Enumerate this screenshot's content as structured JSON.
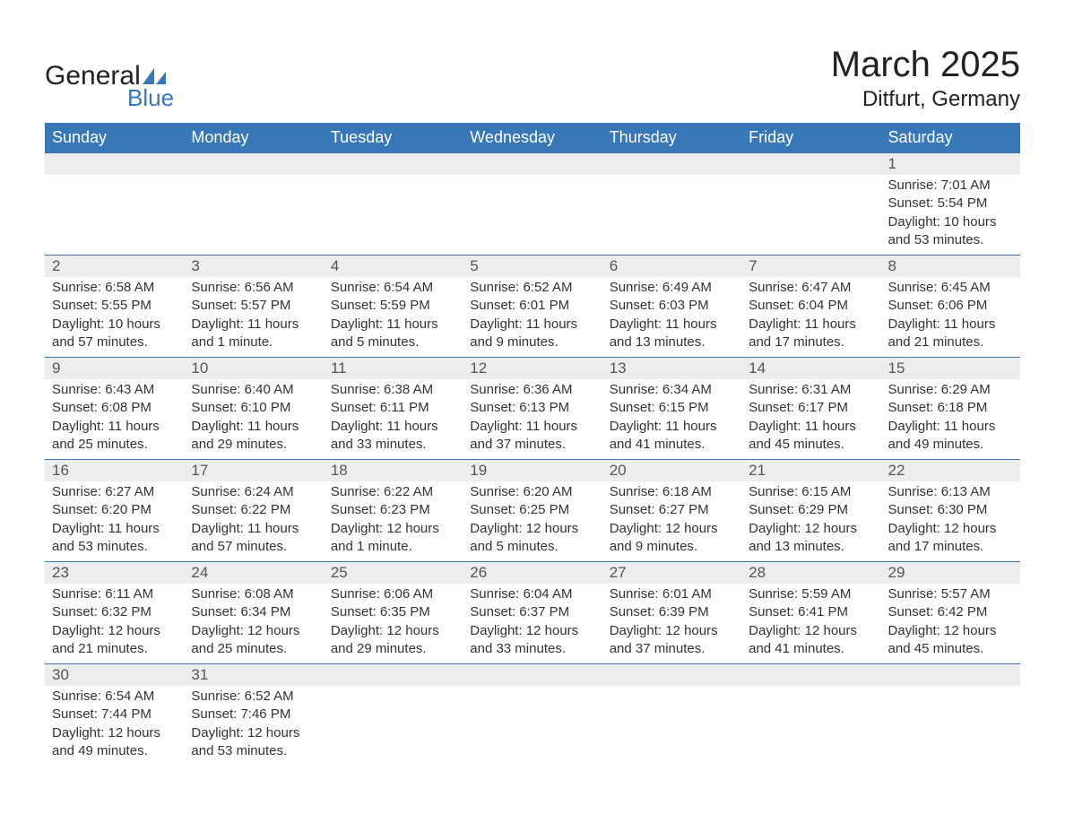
{
  "logo": {
    "text_general": "General",
    "text_blue": "Blue",
    "icon_color": "#3878b8"
  },
  "title": "March 2025",
  "location": "Ditfurt, Germany",
  "colors": {
    "header_bg": "#3878b8",
    "header_text": "#ffffff",
    "daynum_bg": "#ededed",
    "daynum_text": "#555555",
    "body_text": "#333333",
    "row_border": "#3878b8"
  },
  "day_headers": [
    "Sunday",
    "Monday",
    "Tuesday",
    "Wednesday",
    "Thursday",
    "Friday",
    "Saturday"
  ],
  "weeks": [
    [
      null,
      null,
      null,
      null,
      null,
      null,
      {
        "n": "1",
        "sr": "Sunrise: 7:01 AM",
        "ss": "Sunset: 5:54 PM",
        "d1": "Daylight: 10 hours",
        "d2": "and 53 minutes."
      }
    ],
    [
      {
        "n": "2",
        "sr": "Sunrise: 6:58 AM",
        "ss": "Sunset: 5:55 PM",
        "d1": "Daylight: 10 hours",
        "d2": "and 57 minutes."
      },
      {
        "n": "3",
        "sr": "Sunrise: 6:56 AM",
        "ss": "Sunset: 5:57 PM",
        "d1": "Daylight: 11 hours",
        "d2": "and 1 minute."
      },
      {
        "n": "4",
        "sr": "Sunrise: 6:54 AM",
        "ss": "Sunset: 5:59 PM",
        "d1": "Daylight: 11 hours",
        "d2": "and 5 minutes."
      },
      {
        "n": "5",
        "sr": "Sunrise: 6:52 AM",
        "ss": "Sunset: 6:01 PM",
        "d1": "Daylight: 11 hours",
        "d2": "and 9 minutes."
      },
      {
        "n": "6",
        "sr": "Sunrise: 6:49 AM",
        "ss": "Sunset: 6:03 PM",
        "d1": "Daylight: 11 hours",
        "d2": "and 13 minutes."
      },
      {
        "n": "7",
        "sr": "Sunrise: 6:47 AM",
        "ss": "Sunset: 6:04 PM",
        "d1": "Daylight: 11 hours",
        "d2": "and 17 minutes."
      },
      {
        "n": "8",
        "sr": "Sunrise: 6:45 AM",
        "ss": "Sunset: 6:06 PM",
        "d1": "Daylight: 11 hours",
        "d2": "and 21 minutes."
      }
    ],
    [
      {
        "n": "9",
        "sr": "Sunrise: 6:43 AM",
        "ss": "Sunset: 6:08 PM",
        "d1": "Daylight: 11 hours",
        "d2": "and 25 minutes."
      },
      {
        "n": "10",
        "sr": "Sunrise: 6:40 AM",
        "ss": "Sunset: 6:10 PM",
        "d1": "Daylight: 11 hours",
        "d2": "and 29 minutes."
      },
      {
        "n": "11",
        "sr": "Sunrise: 6:38 AM",
        "ss": "Sunset: 6:11 PM",
        "d1": "Daylight: 11 hours",
        "d2": "and 33 minutes."
      },
      {
        "n": "12",
        "sr": "Sunrise: 6:36 AM",
        "ss": "Sunset: 6:13 PM",
        "d1": "Daylight: 11 hours",
        "d2": "and 37 minutes."
      },
      {
        "n": "13",
        "sr": "Sunrise: 6:34 AM",
        "ss": "Sunset: 6:15 PM",
        "d1": "Daylight: 11 hours",
        "d2": "and 41 minutes."
      },
      {
        "n": "14",
        "sr": "Sunrise: 6:31 AM",
        "ss": "Sunset: 6:17 PM",
        "d1": "Daylight: 11 hours",
        "d2": "and 45 minutes."
      },
      {
        "n": "15",
        "sr": "Sunrise: 6:29 AM",
        "ss": "Sunset: 6:18 PM",
        "d1": "Daylight: 11 hours",
        "d2": "and 49 minutes."
      }
    ],
    [
      {
        "n": "16",
        "sr": "Sunrise: 6:27 AM",
        "ss": "Sunset: 6:20 PM",
        "d1": "Daylight: 11 hours",
        "d2": "and 53 minutes."
      },
      {
        "n": "17",
        "sr": "Sunrise: 6:24 AM",
        "ss": "Sunset: 6:22 PM",
        "d1": "Daylight: 11 hours",
        "d2": "and 57 minutes."
      },
      {
        "n": "18",
        "sr": "Sunrise: 6:22 AM",
        "ss": "Sunset: 6:23 PM",
        "d1": "Daylight: 12 hours",
        "d2": "and 1 minute."
      },
      {
        "n": "19",
        "sr": "Sunrise: 6:20 AM",
        "ss": "Sunset: 6:25 PM",
        "d1": "Daylight: 12 hours",
        "d2": "and 5 minutes."
      },
      {
        "n": "20",
        "sr": "Sunrise: 6:18 AM",
        "ss": "Sunset: 6:27 PM",
        "d1": "Daylight: 12 hours",
        "d2": "and 9 minutes."
      },
      {
        "n": "21",
        "sr": "Sunrise: 6:15 AM",
        "ss": "Sunset: 6:29 PM",
        "d1": "Daylight: 12 hours",
        "d2": "and 13 minutes."
      },
      {
        "n": "22",
        "sr": "Sunrise: 6:13 AM",
        "ss": "Sunset: 6:30 PM",
        "d1": "Daylight: 12 hours",
        "d2": "and 17 minutes."
      }
    ],
    [
      {
        "n": "23",
        "sr": "Sunrise: 6:11 AM",
        "ss": "Sunset: 6:32 PM",
        "d1": "Daylight: 12 hours",
        "d2": "and 21 minutes."
      },
      {
        "n": "24",
        "sr": "Sunrise: 6:08 AM",
        "ss": "Sunset: 6:34 PM",
        "d1": "Daylight: 12 hours",
        "d2": "and 25 minutes."
      },
      {
        "n": "25",
        "sr": "Sunrise: 6:06 AM",
        "ss": "Sunset: 6:35 PM",
        "d1": "Daylight: 12 hours",
        "d2": "and 29 minutes."
      },
      {
        "n": "26",
        "sr": "Sunrise: 6:04 AM",
        "ss": "Sunset: 6:37 PM",
        "d1": "Daylight: 12 hours",
        "d2": "and 33 minutes."
      },
      {
        "n": "27",
        "sr": "Sunrise: 6:01 AM",
        "ss": "Sunset: 6:39 PM",
        "d1": "Daylight: 12 hours",
        "d2": "and 37 minutes."
      },
      {
        "n": "28",
        "sr": "Sunrise: 5:59 AM",
        "ss": "Sunset: 6:41 PM",
        "d1": "Daylight: 12 hours",
        "d2": "and 41 minutes."
      },
      {
        "n": "29",
        "sr": "Sunrise: 5:57 AM",
        "ss": "Sunset: 6:42 PM",
        "d1": "Daylight: 12 hours",
        "d2": "and 45 minutes."
      }
    ],
    [
      {
        "n": "30",
        "sr": "Sunrise: 6:54 AM",
        "ss": "Sunset: 7:44 PM",
        "d1": "Daylight: 12 hours",
        "d2": "and 49 minutes."
      },
      {
        "n": "31",
        "sr": "Sunrise: 6:52 AM",
        "ss": "Sunset: 7:46 PM",
        "d1": "Daylight: 12 hours",
        "d2": "and 53 minutes."
      },
      null,
      null,
      null,
      null,
      null
    ]
  ]
}
